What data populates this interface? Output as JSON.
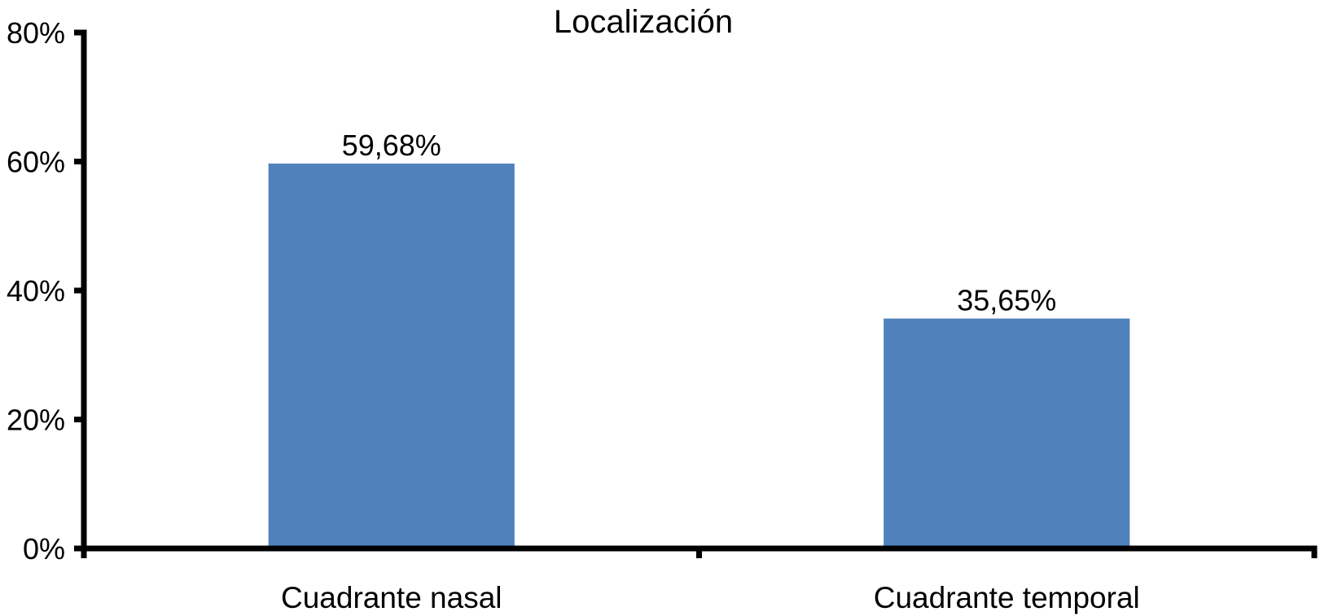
{
  "chart_data": {
    "type": "bar",
    "title": "Localización",
    "categories": [
      "Cuadrante nasal",
      "Cuadrante temporal"
    ],
    "values": [
      59.68,
      35.65
    ],
    "value_labels": [
      "59,68%",
      "35,65%"
    ],
    "ylim": [
      0,
      80
    ],
    "yticks": [
      0,
      20,
      40,
      60,
      80
    ],
    "ytick_labels": [
      "0%",
      "20%",
      "40%",
      "60%",
      "80%"
    ],
    "xlabel": "",
    "ylabel": "",
    "grid": false,
    "legend": "none",
    "bar_color": "#4f81bd"
  }
}
